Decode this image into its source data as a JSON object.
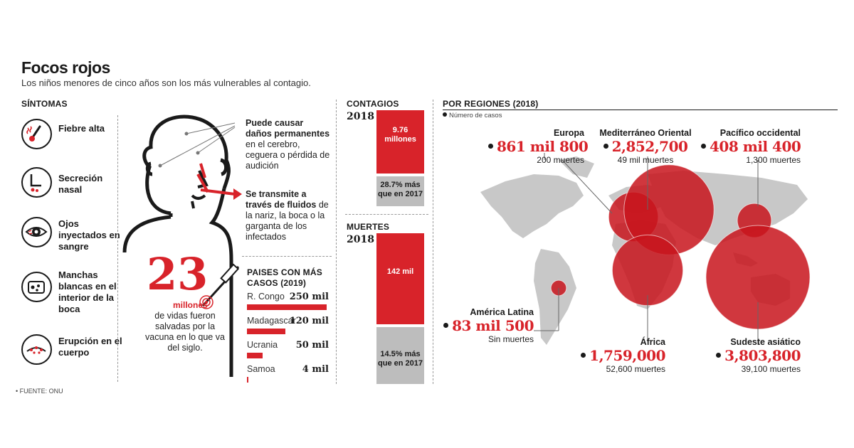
{
  "header": {
    "title": "Focos rojos",
    "subtitle": "Los niños menores de cinco años son los más vulnerables al contagio."
  },
  "symptoms": {
    "heading": "SÍNTOMAS",
    "items": [
      {
        "label": "Fiebre alta",
        "icon": "thermometer-icon"
      },
      {
        "label": "Secreción nasal",
        "icon": "nose-icon"
      },
      {
        "label": "Ojos inyectados en sangre",
        "icon": "eye-icon"
      },
      {
        "label": "Manchas blancas en el interior de la boca",
        "icon": "mouth-icon"
      },
      {
        "label": "Erupción en el cuerpo",
        "icon": "rash-icon"
      }
    ]
  },
  "figure": {
    "damage_bold": "Puede causar daños permanentes",
    "damage_rest": " en el cerebro, ceguera o pérdida de audición",
    "transmit_bold": "Se transmite a través de fluidos",
    "transmit_rest": " de la nariz, la boca o la garganta de los infectados",
    "big_number": "23",
    "big_unit": "millones",
    "big_caption": "de vidas fueron salvadas por la vacuna en lo que va del siglo."
  },
  "source": "FUENTE: ONU",
  "colors": {
    "accent": "#d8232a",
    "grey": "#bdbdbd",
    "map": "#c8c8c8"
  },
  "chart_data": [
    {
      "type": "bar",
      "title": "PAISES CON MÁS CASOS (2019)",
      "categories": [
        "R. Congo",
        "Madagascar",
        "Ucrania",
        "Samoa"
      ],
      "labels": [
        "250 mil",
        "120 mil",
        "50 mil",
        "4 mil"
      ],
      "values": [
        250000,
        120000,
        50000,
        4000
      ]
    },
    {
      "type": "bar",
      "title": "CONTAGIOS",
      "year": "2018",
      "value_label": "9.76 millones",
      "value_millions": 9.76,
      "increase_label": "28.7% más que en 2017",
      "increase_pct": 28.7
    },
    {
      "type": "bar",
      "title": "MUERTES",
      "year": "2018",
      "value_label": "142 mil",
      "value": 142000,
      "increase_label": "14.5% más que en 2017",
      "increase_pct": 14.5
    },
    {
      "type": "scatter",
      "title": "POR REGIONES (2018)",
      "legend": "Número de casos",
      "regions": [
        {
          "name": "Europa",
          "cases_label": "861 mil 800",
          "cases": 861800,
          "deaths": "200 muertes"
        },
        {
          "name": "Mediterráneo Oriental",
          "cases_label": "2,852,700",
          "cases": 2852700,
          "deaths": "49 mil muertes"
        },
        {
          "name": "Pacífico occidental",
          "cases_label": "408 mil 400",
          "cases": 408400,
          "deaths": "1,300 muertes"
        },
        {
          "name": "América Latina",
          "cases_label": "83 mil 500",
          "cases": 83500,
          "deaths": "Sin muertes"
        },
        {
          "name": "África",
          "cases_label": "1,759,000",
          "cases": 1759000,
          "deaths": "52,600 muertes"
        },
        {
          "name": "Sudeste asiático",
          "cases_label": "3,803,800",
          "cases": 3803800,
          "deaths": "39,100 muertes"
        }
      ]
    }
  ]
}
